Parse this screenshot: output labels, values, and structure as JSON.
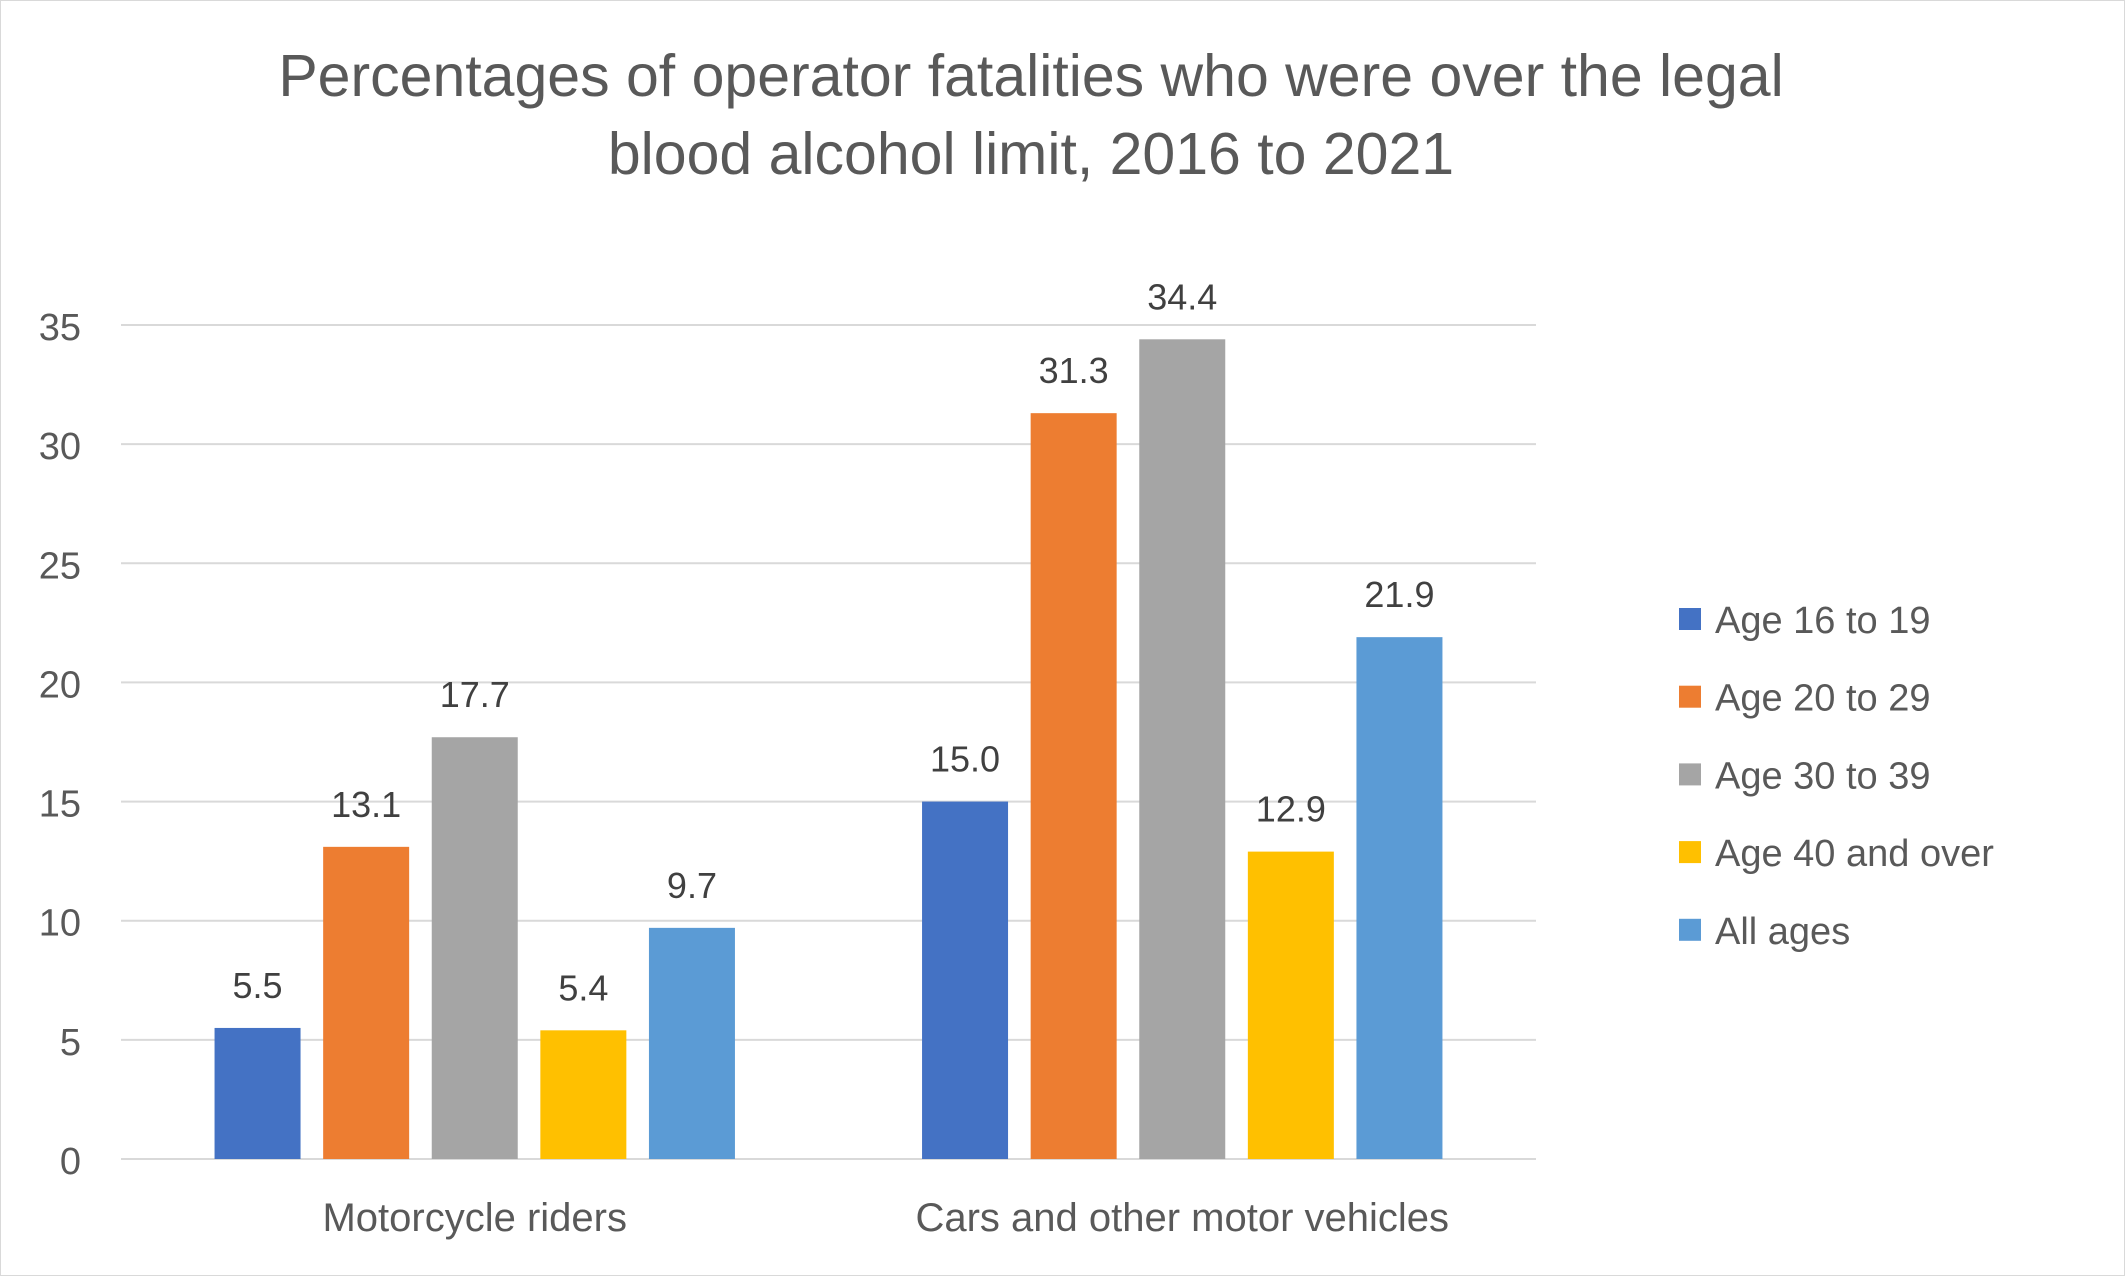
{
  "chart_data": {
    "type": "bar",
    "title": "Percentages of operator fatalities who were over the legal blood alcohol limit, 2016 to 2021",
    "xlabel": "",
    "ylabel": "",
    "categories": [
      "Motorcycle riders",
      "Cars and other motor vehicles"
    ],
    "series": [
      {
        "name": "Age 16 to 19",
        "color": "#4472C4",
        "values": [
          5.5,
          15.0
        ],
        "labels": [
          "5.5",
          "15.0"
        ]
      },
      {
        "name": "Age 20 to 29",
        "color": "#ED7D31",
        "values": [
          13.1,
          31.3
        ],
        "labels": [
          "13.1",
          "31.3"
        ]
      },
      {
        "name": "Age 30 to 39",
        "color": "#A5A5A5",
        "values": [
          17.7,
          34.4
        ],
        "labels": [
          "17.7",
          "34.4"
        ]
      },
      {
        "name": "Age 40 and over",
        "color": "#FFC000",
        "values": [
          5.4,
          12.9
        ],
        "labels": [
          "5.4",
          "12.9"
        ]
      },
      {
        "name": "All ages",
        "color": "#5B9BD5",
        "values": [
          9.7,
          21.9
        ],
        "labels": [
          "9.7",
          "21.9"
        ]
      }
    ],
    "ylim": [
      0,
      35
    ],
    "yticks": [
      0,
      5,
      10,
      15,
      20,
      25,
      30,
      35
    ],
    "grid": true,
    "legend_position": "right"
  }
}
